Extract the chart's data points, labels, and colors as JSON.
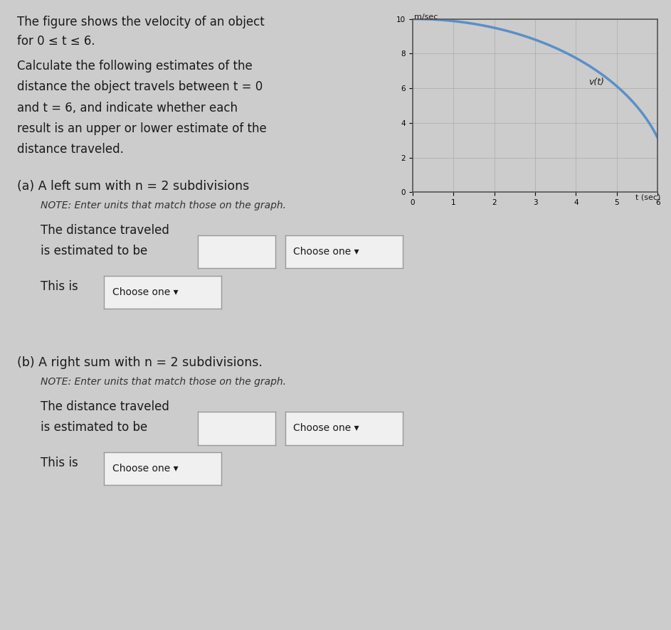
{
  "bg_color": "#cccccc",
  "title_line1": "The figure shows the velocity of an object",
  "title_line1b": "m/sec",
  "title_line2": "for 0 ≤ t ≤ 6.",
  "body_line1": "Calculate the following estimates of the",
  "body_line2": "distance the object travels between t = 0",
  "body_line3": "and t = 6, and indicate whether each",
  "body_line4": "result is an upper or lower estimate of the",
  "body_line5": "distance traveled.",
  "graph_ylabel": "m/sec",
  "graph_xlabel": "t (sec)",
  "graph_curve_label": "v(t)",
  "graph_xlim": [
    0,
    6
  ],
  "graph_ylim": [
    0,
    10
  ],
  "graph_yticks": [
    0,
    2,
    4,
    6,
    8,
    10
  ],
  "graph_xticks": [
    0,
    1,
    2,
    3,
    4,
    5,
    6
  ],
  "curve_color": "#5b8fc7",
  "curve_linewidth": 2.5,
  "part_a_label": "(a) A left sum with n = 2 subdivisions",
  "part_a_note": "NOTE: Enter units that match those on the graph.",
  "part_a_text1": "The distance traveled",
  "part_a_text2": "is estimated to be",
  "part_b_label": "(b) A right sum with n = 2 subdivisions.",
  "part_b_note": "NOTE: Enter units that match those on the graph.",
  "part_b_text1": "The distance traveled",
  "part_b_text2": "is estimated to be",
  "this_is": "This is",
  "choose_one": "Choose one ▾",
  "box_color": "#f0f0f0",
  "box_edge_color": "#999999",
  "text_color": "#1a1a1a",
  "note_color": "#333333"
}
